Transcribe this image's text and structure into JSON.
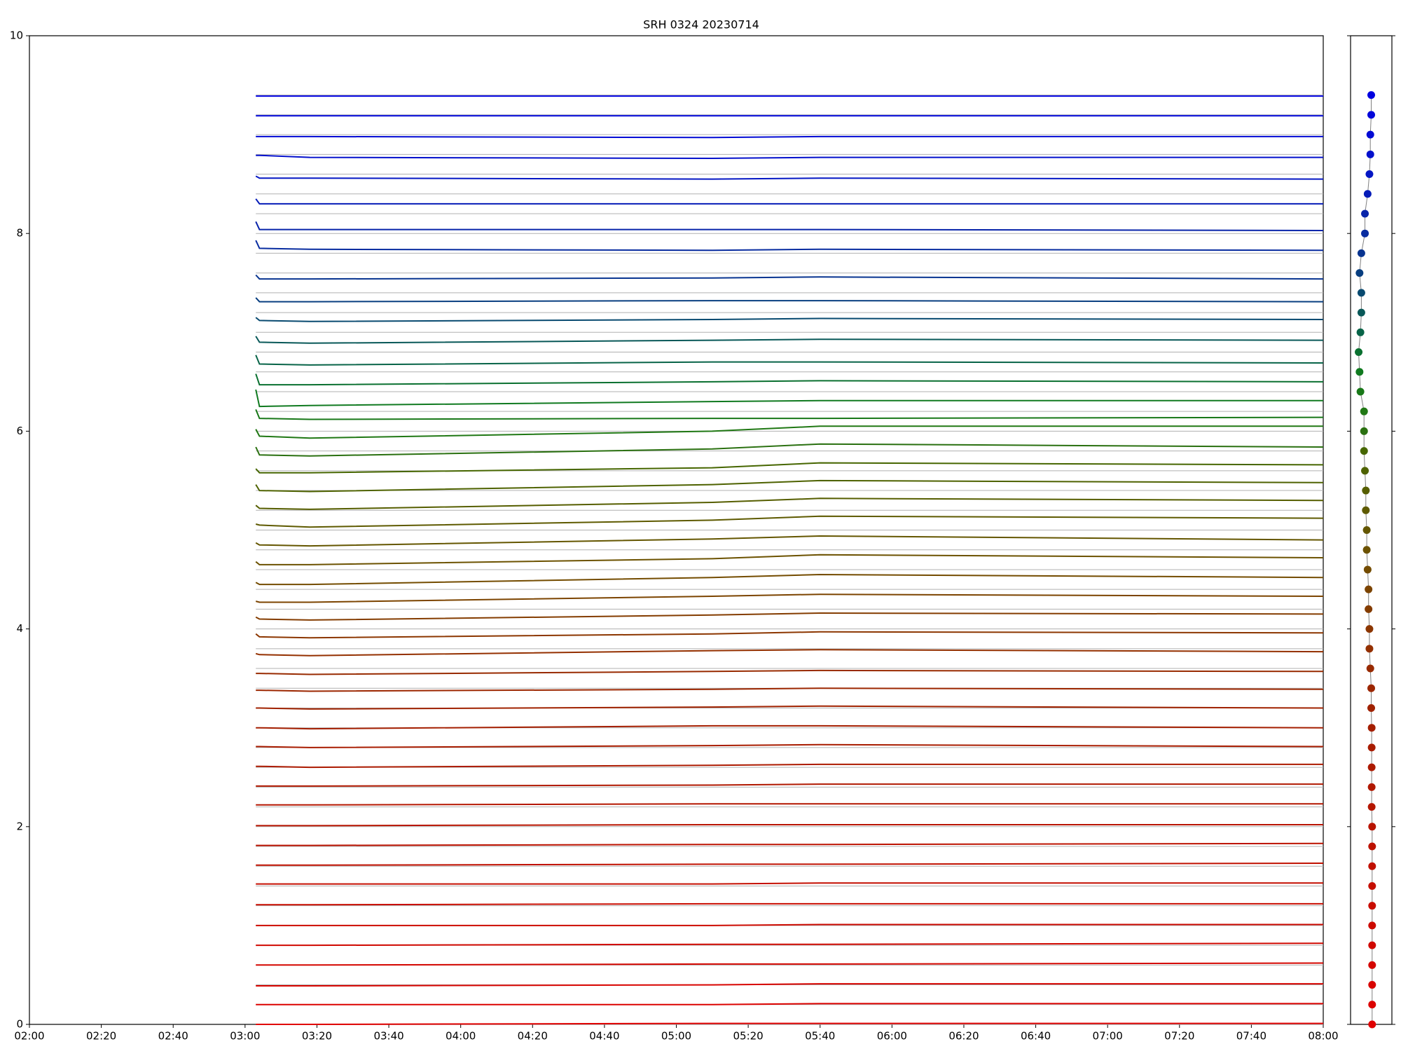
{
  "chart_data": [
    {
      "type": "line",
      "title": "SRH 0324 20230714",
      "x": [
        "03:03",
        "03:04",
        "03:18",
        "05:10",
        "05:40",
        "08:00"
      ],
      "xlim": [
        "02:00",
        "08:00"
      ],
      "xticks": [
        "02:00",
        "02:20",
        "02:40",
        "03:00",
        "03:20",
        "03:40",
        "04:00",
        "04:20",
        "04:40",
        "05:00",
        "05:20",
        "05:40",
        "06:00",
        "06:20",
        "06:40",
        "07:00",
        "07:20",
        "07:40",
        "08:00"
      ],
      "ylim": [
        0,
        10
      ],
      "yticks": [
        0,
        2,
        4,
        6,
        8,
        10
      ],
      "series": [
        {
          "color": "#e00000",
          "values": [
            0,
            0,
            0,
            0.01,
            0.01,
            0.01
          ]
        },
        {
          "color": "#dc0200",
          "values": [
            0.2,
            0.2,
            0.2,
            0.2,
            0.21,
            0.21
          ]
        },
        {
          "color": "#d80400",
          "values": [
            0.39,
            0.39,
            0.39,
            0.4,
            0.41,
            0.41
          ]
        },
        {
          "color": "#d40600",
          "values": [
            0.6,
            0.6,
            0.6,
            0.61,
            0.61,
            0.62
          ]
        },
        {
          "color": "#d00800",
          "values": [
            0.8,
            0.8,
            0.8,
            0.81,
            0.81,
            0.82
          ]
        },
        {
          "color": "#cc0a00",
          "values": [
            1.0,
            1.0,
            1.0,
            1.0,
            1.01,
            1.01
          ]
        },
        {
          "color": "#c80c00",
          "values": [
            1.21,
            1.21,
            1.21,
            1.22,
            1.22,
            1.22
          ]
        },
        {
          "color": "#c40e00",
          "values": [
            1.42,
            1.42,
            1.42,
            1.42,
            1.43,
            1.43
          ]
        },
        {
          "color": "#c01000",
          "values": [
            1.61,
            1.61,
            1.61,
            1.62,
            1.62,
            1.63
          ]
        },
        {
          "color": "#bc1200",
          "values": [
            1.81,
            1.81,
            1.81,
            1.82,
            1.82,
            1.83
          ]
        },
        {
          "color": "#b81400",
          "values": [
            2.01,
            2.01,
            2.01,
            2.02,
            2.02,
            2.02
          ]
        },
        {
          "color": "#b41600",
          "values": [
            2.22,
            2.22,
            2.22,
            2.23,
            2.23,
            2.23
          ]
        },
        {
          "color": "#b01800",
          "values": [
            2.41,
            2.41,
            2.41,
            2.42,
            2.43,
            2.43
          ]
        },
        {
          "color": "#ac1a00",
          "values": [
            2.61,
            2.61,
            2.6,
            2.62,
            2.63,
            2.63
          ]
        },
        {
          "color": "#a81c00",
          "values": [
            2.81,
            2.81,
            2.8,
            2.82,
            2.83,
            2.81
          ]
        },
        {
          "color": "#a41e00",
          "values": [
            3.0,
            3.0,
            2.99,
            3.02,
            3.02,
            3.0
          ]
        },
        {
          "color": "#a02200",
          "values": [
            3.2,
            3.2,
            3.19,
            3.21,
            3.22,
            3.2
          ]
        },
        {
          "color": "#9c2600",
          "values": [
            3.38,
            3.38,
            3.37,
            3.39,
            3.4,
            3.39
          ]
        },
        {
          "color": "#982a00",
          "values": [
            3.55,
            3.55,
            3.54,
            3.57,
            3.58,
            3.57
          ]
        },
        {
          "color": "#943000",
          "values": [
            3.75,
            3.74,
            3.73,
            3.78,
            3.79,
            3.77
          ]
        },
        {
          "color": "#8c3600",
          "values": [
            3.95,
            3.92,
            3.91,
            3.95,
            3.97,
            3.96
          ]
        },
        {
          "color": "#843c00",
          "values": [
            4.12,
            4.1,
            4.09,
            4.14,
            4.16,
            4.15
          ]
        },
        {
          "color": "#7c4400",
          "values": [
            4.28,
            4.27,
            4.27,
            4.33,
            4.35,
            4.33
          ]
        },
        {
          "color": "#744c00",
          "values": [
            4.47,
            4.45,
            4.45,
            4.52,
            4.55,
            4.52
          ]
        },
        {
          "color": "#6c5200",
          "values": [
            4.68,
            4.65,
            4.65,
            4.71,
            4.75,
            4.72
          ]
        },
        {
          "color": "#645600",
          "values": [
            4.87,
            4.85,
            4.84,
            4.91,
            4.94,
            4.9
          ]
        },
        {
          "color": "#5e5a00",
          "values": [
            5.06,
            5.05,
            5.03,
            5.1,
            5.14,
            5.12
          ]
        },
        {
          "color": "#565e00",
          "values": [
            5.25,
            5.22,
            5.21,
            5.28,
            5.32,
            5.3
          ]
        },
        {
          "color": "#4e6200",
          "values": [
            5.46,
            5.4,
            5.39,
            5.46,
            5.5,
            5.48
          ]
        },
        {
          "color": "#466600",
          "values": [
            5.62,
            5.58,
            5.58,
            5.63,
            5.68,
            5.66
          ]
        },
        {
          "color": "#2a7010",
          "values": [
            5.84,
            5.76,
            5.75,
            5.82,
            5.87,
            5.84
          ]
        },
        {
          "color": "#207814",
          "values": [
            6.02,
            5.95,
            5.93,
            6.0,
            6.05,
            6.05
          ]
        },
        {
          "color": "#187818",
          "values": [
            6.22,
            6.13,
            6.12,
            6.13,
            6.13,
            6.14
          ]
        },
        {
          "color": "#107a20",
          "values": [
            6.42,
            6.25,
            6.26,
            6.3,
            6.31,
            6.31
          ]
        },
        {
          "color": "#0a7030",
          "values": [
            6.58,
            6.47,
            6.47,
            6.5,
            6.51,
            6.5
          ]
        },
        {
          "color": "#086448",
          "values": [
            6.77,
            6.68,
            6.67,
            6.7,
            6.7,
            6.69
          ]
        },
        {
          "color": "#085858",
          "values": [
            6.96,
            6.9,
            6.89,
            6.92,
            6.93,
            6.92
          ]
        },
        {
          "color": "#084a70",
          "values": [
            7.15,
            7.12,
            7.11,
            7.13,
            7.14,
            7.13
          ]
        },
        {
          "color": "#083e80",
          "values": [
            7.35,
            7.31,
            7.31,
            7.32,
            7.32,
            7.31
          ]
        },
        {
          "color": "#083490",
          "values": [
            7.58,
            7.54,
            7.54,
            7.55,
            7.56,
            7.54
          ]
        },
        {
          "color": "#082ca0",
          "values": [
            7.93,
            7.85,
            7.84,
            7.83,
            7.84,
            7.83
          ]
        },
        {
          "color": "#0824aa",
          "values": [
            8.12,
            8.04,
            8.04,
            8.04,
            8.04,
            8.03
          ]
        },
        {
          "color": "#061cb8",
          "values": [
            8.35,
            8.3,
            8.3,
            8.3,
            8.3,
            8.3
          ]
        },
        {
          "color": "#0416c4",
          "values": [
            8.58,
            8.56,
            8.56,
            8.55,
            8.56,
            8.55
          ]
        },
        {
          "color": "#0410cc",
          "values": [
            8.79,
            8.79,
            8.77,
            8.76,
            8.77,
            8.77
          ]
        },
        {
          "color": "#020ad4",
          "values": [
            8.98,
            8.98,
            8.98,
            8.97,
            8.98,
            8.98
          ]
        },
        {
          "color": "#0206da",
          "values": [
            9.19,
            9.19,
            9.19,
            9.19,
            9.19,
            9.19
          ]
        },
        {
          "color": "#0000e0",
          "values": [
            9.39,
            9.39,
            9.39,
            9.39,
            9.39,
            9.39
          ]
        }
      ]
    },
    {
      "type": "scatter",
      "xlim": [
        -2.3,
        2.3
      ],
      "ylim": [
        0,
        10
      ],
      "line_color": "#808080",
      "x": [
        0.1,
        0.1,
        0.1,
        0.1,
        0.1,
        0.1,
        0.1,
        0.1,
        0.1,
        0.1,
        0.1,
        0.05,
        0.05,
        0.05,
        0.05,
        0.05,
        0,
        0,
        -0.1,
        -0.2,
        -0.2,
        -0.3,
        -0.3,
        -0.4,
        -0.5,
        -0.5,
        -0.6,
        -0.6,
        -0.7,
        -0.8,
        -0.8,
        -0.8,
        -1.2,
        -1.3,
        -1.4,
        -1.2,
        -1.1,
        -1.1,
        -1.3,
        -1.1,
        -0.7,
        -0.7,
        -0.4,
        -0.2,
        -0.1,
        -0.1,
        0,
        0
      ],
      "y": [
        0,
        0.2,
        0.4,
        0.6,
        0.8,
        1.0,
        1.2,
        1.4,
        1.6,
        1.8,
        2.0,
        2.2,
        2.4,
        2.6,
        2.8,
        3.0,
        3.2,
        3.4,
        3.6,
        3.8,
        4.0,
        4.2,
        4.4,
        4.6,
        4.8,
        5.0,
        5.2,
        5.4,
        5.6,
        5.8,
        6.0,
        6.2,
        6.4,
        6.6,
        6.8,
        7.0,
        7.2,
        7.4,
        7.6,
        7.8,
        8.0,
        8.2,
        8.4,
        8.6,
        8.8,
        9.0,
        9.2,
        9.4
      ]
    }
  ]
}
